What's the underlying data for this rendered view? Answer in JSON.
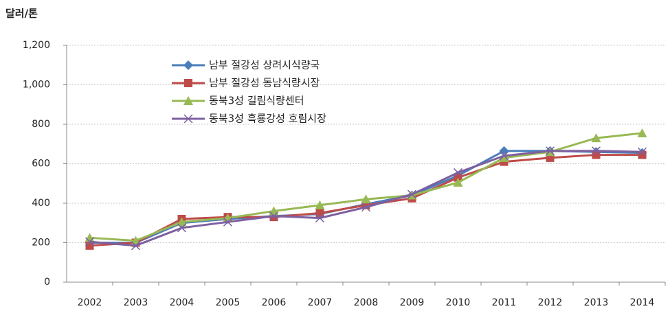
{
  "chart_data": {
    "type": "line",
    "y_label": "달러/톤",
    "categories": [
      "2002",
      "2003",
      "2004",
      "2005",
      "2006",
      "2007",
      "2008",
      "2009",
      "2010",
      "2011",
      "2012",
      "2013",
      "2014"
    ],
    "series": [
      {
        "name": "남부 절강성 상려시식량국",
        "color": "#4a7ebb",
        "marker": "diamond",
        "values": [
          200,
          200,
          300,
          320,
          335,
          345,
          395,
          440,
          540,
          665,
          665,
          660,
          655
        ]
      },
      {
        "name": "남부 절강성 동남식량시장",
        "color": "#be4b48",
        "marker": "square",
        "values": [
          185,
          200,
          320,
          330,
          330,
          350,
          390,
          425,
          530,
          610,
          630,
          645,
          645
        ]
      },
      {
        "name": "동북3성 길림식량센터",
        "color": "#98b954",
        "marker": "triangle",
        "values": [
          225,
          210,
          305,
          325,
          360,
          390,
          420,
          440,
          505,
          630,
          660,
          730,
          755
        ]
      },
      {
        "name": "동북3성 흑룡강성 호림시장",
        "color": "#7d60a0",
        "marker": "x",
        "values": [
          205,
          185,
          275,
          305,
          335,
          325,
          380,
          445,
          555,
          640,
          665,
          665,
          660
        ]
      }
    ],
    "ylim": [
      0,
      1200
    ],
    "yticks": [
      0,
      200,
      400,
      600,
      800,
      {
        "value": 1000,
        "label": "1,000"
      },
      {
        "value": 1200,
        "label": "1,200"
      }
    ],
    "grid": true,
    "legend": "upper left"
  }
}
